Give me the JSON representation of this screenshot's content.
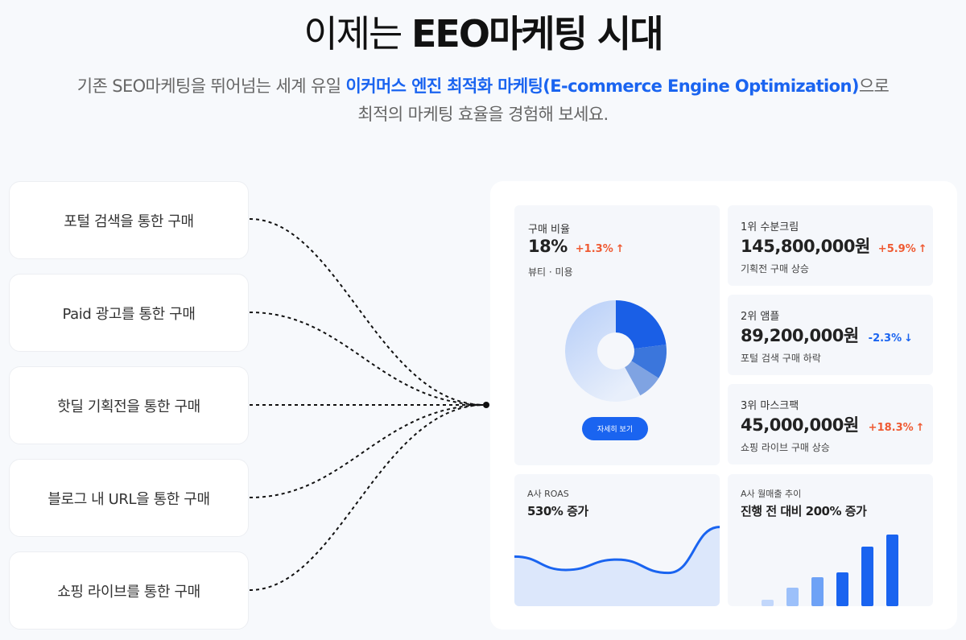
{
  "header": {
    "title_light": "이제는",
    "title_bold": "EEO마케팅 시대",
    "subtitle_pre": "기존 SEO마케팅을 뛰어넘는 세계 유일",
    "subtitle_highlight": "이커머스 엔진 최적화 마케팅(E-commerce Engine Optimization)",
    "subtitle_post": "으로",
    "subtitle_line2": "최적의 마케팅 효율을 경험해 보세요."
  },
  "channels": [
    "포털 검색을 통한 구매",
    "Paid 광고를 통한 구매",
    "핫딜 기획전을 통한 구매",
    "블로그 내 URL을 통한 구매",
    "쇼핑 라이브를 통한 구매"
  ],
  "purchase_ratio": {
    "label": "구매 비율",
    "value": "18%",
    "change": "+1.3%",
    "category": "뷰티 · 미용",
    "button": "자세히 보기"
  },
  "rankings": [
    {
      "rank": "1위 수분크림",
      "amount": "145,800,000원",
      "change": "+5.9%",
      "trend": "up",
      "note": "기획전 구매 상승"
    },
    {
      "rank": "2위 앰플",
      "amount": "89,200,000원",
      "change": "-2.3%",
      "trend": "down",
      "note": "포털 검색 구매 하락"
    },
    {
      "rank": "3위 마스크팩",
      "amount": "45,000,000원",
      "change": "+18.3%",
      "trend": "up",
      "note": "쇼핑 라이브 구매 상승"
    }
  ],
  "roas": {
    "label": "A사 ROAS",
    "value": "530% 증가"
  },
  "monthly": {
    "label": "A사 월매출 추이",
    "value": "진행 전 대비 200% 증가"
  },
  "chart_data": [
    {
      "type": "pie",
      "values": [
        23,
        11,
        8,
        58
      ],
      "colors": [
        "#1a5fe6",
        "#3b76dc",
        "#7fa3e2",
        "#c9d9f5"
      ]
    },
    {
      "type": "area",
      "values": [
        30,
        12,
        26,
        8,
        70
      ],
      "color": "#1a64f0"
    },
    {
      "type": "bar",
      "values": [
        8,
        23,
        36,
        42,
        74,
        89
      ],
      "colors": [
        "#c2d7fb",
        "#9cc0fa",
        "#6ea2f6",
        "#1a64f0",
        "#1a64f0",
        "#1a64f0"
      ]
    }
  ]
}
